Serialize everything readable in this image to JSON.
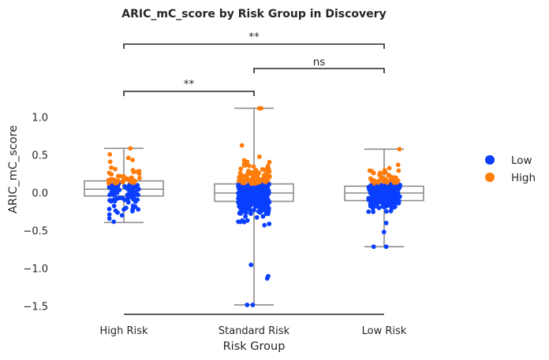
{
  "chart_data": {
    "type": "box-strip",
    "title": "ARIC_mC_score by Risk Group in Discovery",
    "xlabel": "Risk Group",
    "ylabel": "ARIC_mC_score",
    "categories": [
      "High Risk",
      "Standard Risk",
      "Low Risk"
    ],
    "yticks": [
      1.0,
      0.5,
      0.0,
      -0.5,
      -1.0,
      -1.5
    ],
    "ytick_labels": [
      "1.0",
      "0.5",
      "0.0",
      "−0.5",
      "−1.0",
      "−1.5"
    ],
    "ylim": [
      -1.6,
      1.25
    ],
    "boxes": [
      {
        "category": "High Risk",
        "whisker_low": -0.39,
        "q1": -0.04,
        "median": 0.05,
        "q3": 0.16,
        "whisker_high": 0.59
      },
      {
        "category": "Standard Risk",
        "whisker_low": -1.48,
        "q1": -0.11,
        "median": 0.0,
        "q3": 0.12,
        "whisker_high": 1.12
      },
      {
        "category": "Low Risk",
        "whisker_low": -0.71,
        "q1": -0.1,
        "median": 0.0,
        "q3": 0.09,
        "whisker_high": 0.58
      }
    ],
    "points": {
      "High Risk": {
        "n": 130,
        "min": -0.38,
        "max": 0.59,
        "outliers": []
      },
      "Standard Risk": {
        "n": 420,
        "min": -1.48,
        "max": 1.12,
        "outliers": [
          -1.48,
          -1.13,
          -1.1,
          -0.95,
          0.63,
          1.12
        ]
      },
      "Low Risk": {
        "n": 250,
        "min": -0.71,
        "max": 0.58,
        "outliers": [
          -0.71
        ]
      }
    },
    "legend": {
      "position": "right",
      "items": [
        {
          "label": "Low",
          "color": "#0a3fff"
        },
        {
          "label": "High",
          "color": "#ff7c0a"
        }
      ]
    },
    "split_threshold": 0.12,
    "significance": [
      {
        "from": "High Risk",
        "to": "Standard Risk",
        "label": "**"
      },
      {
        "from": "Standard Risk",
        "to": "Low Risk",
        "label": "ns"
      },
      {
        "from": "High Risk",
        "to": "Low Risk",
        "label": "**"
      }
    ],
    "colors": {
      "box": "#8c8c8c",
      "axis": "#262626"
    }
  }
}
